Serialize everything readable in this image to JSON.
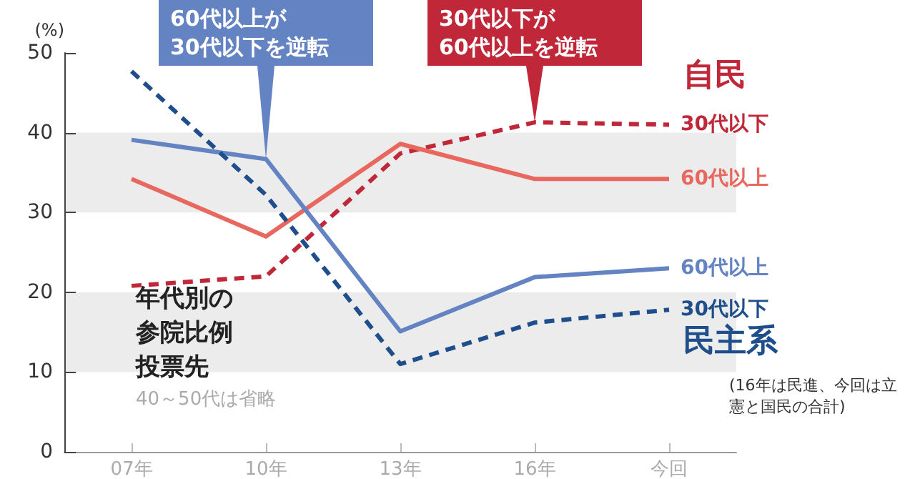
{
  "chart_data": {
    "type": "line",
    "title": "年代別の参院比例投票先",
    "subtitle": "40～50代は省略",
    "ylabel": "(%)",
    "categories": [
      "07年",
      "10年",
      "13年",
      "16年",
      "今回"
    ],
    "ylim": [
      0,
      50
    ],
    "yticks": [
      0,
      10,
      20,
      30,
      40,
      50
    ],
    "grid": false,
    "legend": false,
    "marker": "none",
    "bands": [
      {
        "axis": "y",
        "from": 10,
        "to": 20,
        "color": "#ececec"
      },
      {
        "axis": "y",
        "from": 30,
        "to": 40,
        "color": "#ececec"
      }
    ],
    "series": [
      {
        "name": "30代以下",
        "color": "#c0283a",
        "line_style": "dashed",
        "values": [
          20.8,
          22,
          37.4,
          41.3,
          41
        ]
      },
      {
        "name": "60代以上",
        "color": "#e8685f",
        "line_style": "solid",
        "values": [
          34.2,
          27,
          38.6,
          34.2,
          34.2
        ]
      },
      {
        "name": "60代以上",
        "color": "#6483c2",
        "line_style": "solid",
        "values": [
          39.1,
          36.7,
          15.1,
          21.9,
          23
        ]
      },
      {
        "name": "30代以下",
        "color": "#1f4e8c",
        "line_style": "dashed",
        "values": [
          47.7,
          32.2,
          11,
          16.2,
          17.8
        ]
      }
    ],
    "annotations": [
      {
        "text": "60代以上が\n30代以下を逆転",
        "x": "10年",
        "y": 36.7
      },
      {
        "text": "30代以下が\n60代以上を逆転",
        "x": "16年",
        "y": 41.3
      },
      "自民",
      "民主系",
      "(16年は民進、今回は立憲と国民の合計)"
    ]
  }
}
